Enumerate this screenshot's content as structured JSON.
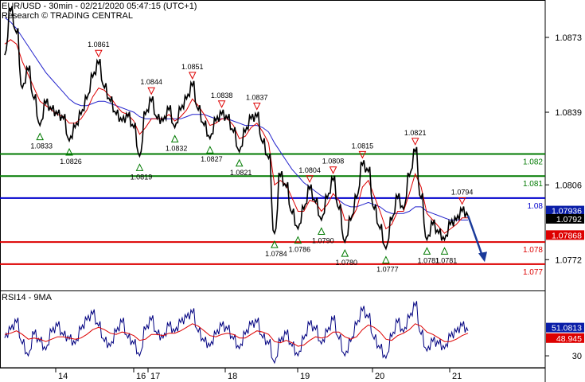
{
  "header": {
    "line1": "EUR/USD - 30min - 02/21/2020 05:47:15 (UTC+1)",
    "line2": "Research © TRADING CENTRAL"
  },
  "colors": {
    "price": "#000000",
    "ma_red": "#dd0000",
    "ma_blue": "#2222cc",
    "support": "#dd0000",
    "resistance": "#007a00",
    "pivot": "#0000cc",
    "projection": "#1a3a9a",
    "rsi": "#000080",
    "rsi_ma": "#dd0000"
  },
  "chart_data": [
    {
      "type": "line",
      "title": "EUR/USD - 30min",
      "x_labels": [
        "14",
        "16",
        "17",
        "18",
        "19",
        "20",
        "21"
      ],
      "y_ticks": [
        1.0873,
        1.0839,
        1.0806,
        1.0772
      ],
      "ylim": [
        1.0758,
        1.089
      ],
      "price_path": [
        1.0865,
        1.0885,
        1.0875,
        1.085,
        1.0858,
        1.0845,
        1.0833,
        1.0843,
        1.084,
        1.0838,
        1.0836,
        1.0826,
        1.0832,
        1.0838,
        1.0845,
        1.0855,
        1.0861,
        1.085,
        1.0844,
        1.0838,
        1.0835,
        1.0837,
        1.0832,
        1.0819,
        1.0838,
        1.0844,
        1.0836,
        1.0835,
        1.084,
        1.0832,
        1.084,
        1.0845,
        1.0851,
        1.084,
        1.0833,
        1.0827,
        1.0835,
        1.0838,
        1.0836,
        1.083,
        1.0821,
        1.083,
        1.0836,
        1.0837,
        1.0825,
        1.0818,
        1.0784,
        1.081,
        1.0805,
        1.0793,
        1.0786,
        1.0795,
        1.0804,
        1.0798,
        1.079,
        1.08,
        1.0808,
        1.0795,
        1.078,
        1.079,
        1.08,
        1.0815,
        1.0812,
        1.0795,
        1.0786,
        1.0777,
        1.079,
        1.08,
        1.0795,
        1.081,
        1.0821,
        1.08,
        1.0781,
        1.0788,
        1.0784,
        1.0781,
        1.0788,
        1.079,
        1.0794,
        1.0792
      ],
      "ma_red_values": [
        1.087,
        1.0872,
        1.087,
        1.0862,
        1.0856,
        1.085,
        1.0844,
        1.0842,
        1.084,
        1.0838,
        1.0837,
        1.0834,
        1.0834,
        1.0836,
        1.084,
        1.0846,
        1.085,
        1.0849,
        1.0846,
        1.0842,
        1.0839,
        1.0838,
        1.0835,
        1.0829,
        1.0832,
        1.0836,
        1.0836,
        1.0836,
        1.0838,
        1.0835,
        1.0837,
        1.084,
        1.0845,
        1.0842,
        1.0838,
        1.0833,
        1.0834,
        1.0836,
        1.0836,
        1.0833,
        1.0827,
        1.0828,
        1.0832,
        1.0834,
        1.083,
        1.0825,
        1.0806,
        1.0808,
        1.0806,
        1.08,
        1.0794,
        1.0794,
        1.0799,
        1.0798,
        1.0794,
        1.0797,
        1.0802,
        1.0799,
        1.079,
        1.079,
        1.0795,
        1.0805,
        1.0808,
        1.0801,
        1.0794,
        1.0786,
        1.0788,
        1.0794,
        1.0794,
        1.0802,
        1.0811,
        1.0805,
        1.0793,
        1.079,
        1.0787,
        1.0784,
        1.0786,
        1.0788,
        1.0791,
        1.0791
      ],
      "ma_blue_values": [
        1.0882,
        1.088,
        1.0877,
        1.0873,
        1.0869,
        1.0865,
        1.0861,
        1.0857,
        1.0854,
        1.0851,
        1.0848,
        1.0845,
        1.0843,
        1.0842,
        1.0842,
        1.0843,
        1.0844,
        1.0844,
        1.0843,
        1.0842,
        1.0841,
        1.084,
        1.0839,
        1.0837,
        1.0836,
        1.0836,
        1.0836,
        1.0836,
        1.0836,
        1.0836,
        1.0836,
        1.0837,
        1.0838,
        1.0838,
        1.0838,
        1.0837,
        1.0836,
        1.0836,
        1.0836,
        1.0835,
        1.0834,
        1.0833,
        1.0833,
        1.0833,
        1.0832,
        1.083,
        1.0825,
        1.0821,
        1.0817,
        1.0813,
        1.081,
        1.0807,
        1.0805,
        1.0803,
        1.0801,
        1.08,
        1.08,
        1.0799,
        1.0797,
        1.0796,
        1.0796,
        1.0797,
        1.0798,
        1.0797,
        1.0796,
        1.0794,
        1.0793,
        1.0793,
        1.0793,
        1.0794,
        1.0796,
        1.0796,
        1.0794,
        1.0793,
        1.0792,
        1.0791,
        1.079,
        1.079,
        1.079,
        1.079
      ],
      "levels": [
        {
          "value": 1.082,
          "label": "1.082",
          "kind": "resistance"
        },
        {
          "value": 1.081,
          "label": "1.081",
          "kind": "resistance"
        },
        {
          "value": 1.08,
          "label": "1.08",
          "kind": "pivot"
        },
        {
          "value": 1.078,
          "label": "1.078",
          "kind": "support"
        },
        {
          "value": 1.077,
          "label": "1.077",
          "kind": "support"
        }
      ],
      "price_tags": [
        {
          "value": 1.07936,
          "label": "1.07936",
          "kind": "blue"
        },
        {
          "value": 1.0792,
          "label": "1.0792",
          "kind": "black"
        },
        {
          "value": 1.07868,
          "label": "1.07868",
          "kind": "red"
        }
      ],
      "highs": [
        {
          "index": 16,
          "label": "1.0861"
        },
        {
          "index": 25,
          "label": "1.0844"
        },
        {
          "index": 32,
          "label": "1.0851"
        },
        {
          "index": 37,
          "label": "1.0838"
        },
        {
          "index": 43,
          "label": "1.0837"
        },
        {
          "index": 52,
          "label": "1.0804"
        },
        {
          "index": 56,
          "label": "1.0808"
        },
        {
          "index": 61,
          "label": "1.0815"
        },
        {
          "index": 70,
          "label": "1.0821"
        },
        {
          "index": 78,
          "label": "1.0794"
        }
      ],
      "lows": [
        {
          "index": 6,
          "label": "1.0833"
        },
        {
          "index": 11,
          "label": "1.0826"
        },
        {
          "index": 23,
          "label": "1.0819"
        },
        {
          "index": 29,
          "label": "1.0832"
        },
        {
          "index": 35,
          "label": "1.0827"
        },
        {
          "index": 40,
          "label": "1.0821"
        },
        {
          "index": 46,
          "label": "1.0784"
        },
        {
          "index": 50,
          "label": "1.0786"
        },
        {
          "index": 54,
          "label": "1.0790"
        },
        {
          "index": 58,
          "label": "1.0780"
        },
        {
          "index": 65,
          "label": "1.0777"
        },
        {
          "index": 72,
          "label": "1.0781"
        },
        {
          "index": 75,
          "label": "1.0781"
        }
      ]
    },
    {
      "type": "line",
      "title": "RSI14 - 9MA",
      "ylim": [
        20,
        85
      ],
      "y_ticks": [
        30
      ],
      "rsi_values": [
        45,
        52,
        58,
        40,
        30,
        48,
        42,
        35,
        50,
        55,
        47,
        44,
        40,
        52,
        60,
        65,
        55,
        42,
        38,
        50,
        58,
        45,
        40,
        30,
        52,
        60,
        48,
        45,
        55,
        50,
        58,
        62,
        66,
        50,
        42,
        38,
        48,
        55,
        52,
        44,
        36,
        48,
        56,
        58,
        45,
        40,
        24,
        42,
        48,
        38,
        30,
        44,
        56,
        52,
        40,
        50,
        60,
        44,
        30,
        42,
        56,
        68,
        62,
        44,
        36,
        28,
        46,
        58,
        50,
        62,
        72,
        48,
        34,
        42,
        40,
        36,
        46,
        50,
        55,
        51
      ],
      "rsi_ma_values": [
        48,
        49,
        51,
        48,
        44,
        45,
        44,
        42,
        44,
        46,
        46,
        45,
        44,
        45,
        48,
        52,
        54,
        52,
        49,
        48,
        50,
        49,
        47,
        43,
        44,
        48,
        48,
        47,
        49,
        49,
        51,
        54,
        57,
        55,
        51,
        47,
        46,
        48,
        49,
        48,
        45,
        45,
        48,
        51,
        50,
        48,
        42,
        41,
        43,
        41,
        38,
        39,
        43,
        46,
        45,
        46,
        50,
        50,
        46,
        44,
        46,
        52,
        56,
        54,
        50,
        44,
        43,
        47,
        49,
        52,
        57,
        55,
        50,
        48,
        45,
        42,
        42,
        44,
        47,
        49
      ],
      "value_tags": [
        {
          "value": 51.0813,
          "label": "51.0813",
          "kind": "blue"
        },
        {
          "value": 48.945,
          "label": "48.945",
          "kind": "red"
        }
      ]
    }
  ]
}
